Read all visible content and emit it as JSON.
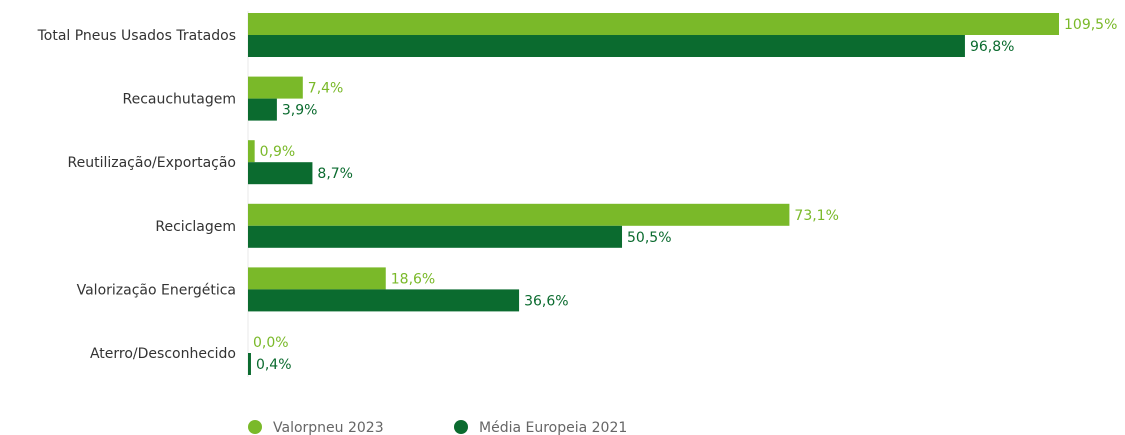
{
  "chart_data": {
    "type": "bar",
    "orientation": "horizontal",
    "categories": [
      "Total Pneus Usados Tratados",
      "Recauchutagem",
      "Reutilização/Exportação",
      "Reciclagem",
      "Valorização Energética",
      "Aterro/Desconhecido"
    ],
    "series": [
      {
        "name": "Valorpneu 2023",
        "color": "#7ab929",
        "values": [
          109.5,
          7.4,
          0.9,
          73.1,
          18.6,
          0.0
        ],
        "labels": [
          "109,5%",
          "7,4%",
          "0,9%",
          "73,1%",
          "18,6%",
          "0,0%"
        ]
      },
      {
        "name": "Média Europeia 2021",
        "color": "#0b6b2f",
        "values": [
          96.8,
          3.9,
          8.7,
          50.5,
          36.6,
          0.4
        ],
        "labels": [
          "96,8%",
          "3,9%",
          "8,7%",
          "50,5%",
          "36,6%",
          "0,4%"
        ]
      }
    ],
    "xlim": [
      0,
      109.5
    ],
    "grid": false,
    "legend": "bottom-left"
  }
}
